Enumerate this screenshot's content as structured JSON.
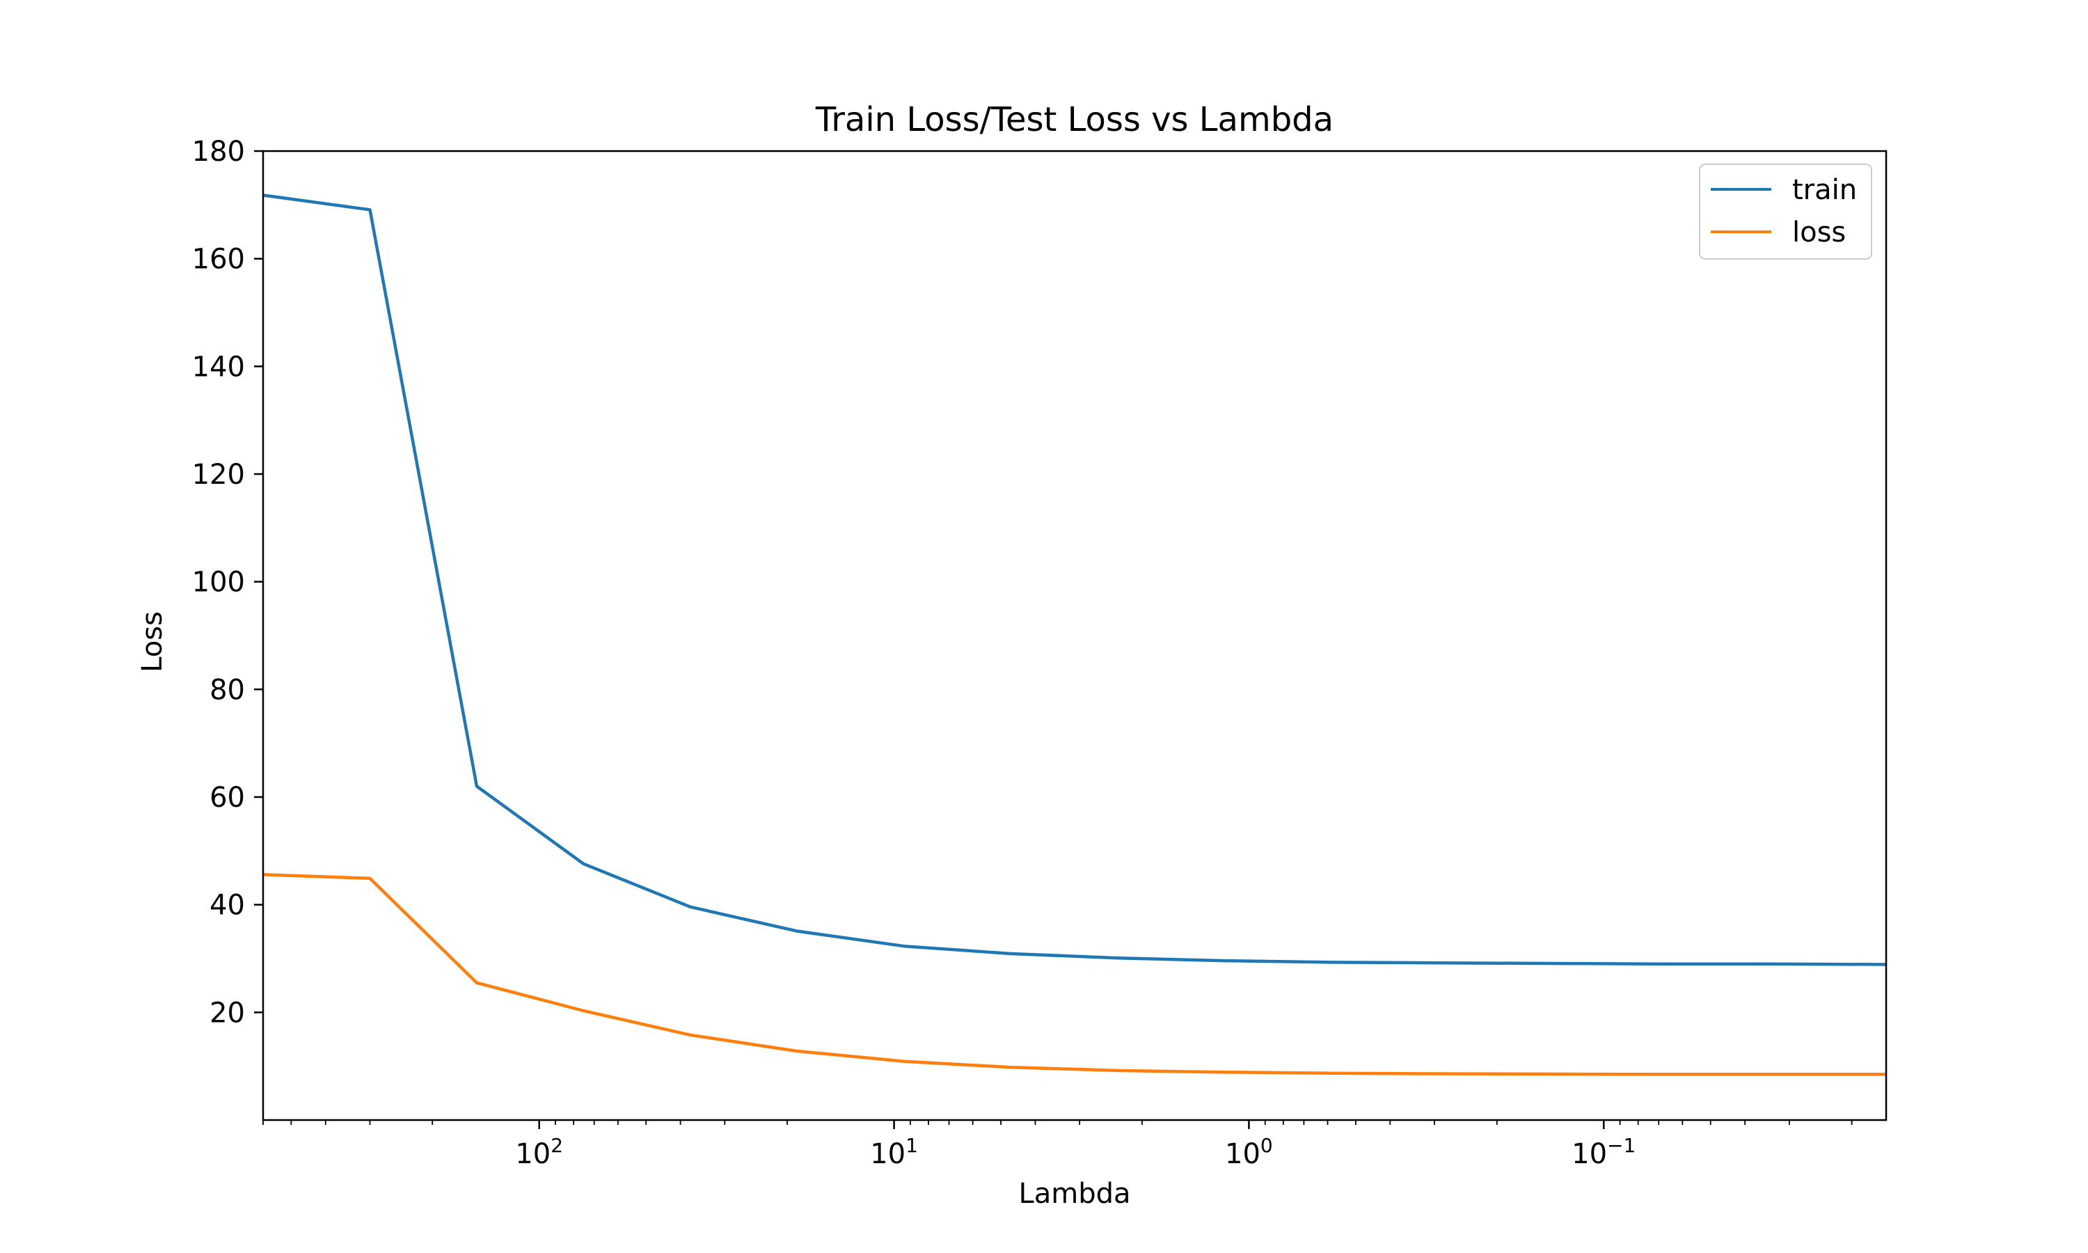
{
  "chart_data": {
    "type": "line",
    "title": "Train Loss/Test Loss vs Lambda",
    "xlabel": "Lambda",
    "ylabel": "Loss",
    "xscale": "log",
    "x_reversed": true,
    "xlim": [
      600,
      0.016
    ],
    "ylim": [
      0,
      180
    ],
    "x_ticks": [
      {
        "value": 100,
        "base": "10",
        "exp": "2"
      },
      {
        "value": 10,
        "base": "10",
        "exp": "1"
      },
      {
        "value": 1,
        "base": "10",
        "exp": "0"
      },
      {
        "value": 0.1,
        "base": "10",
        "exp": "−1"
      }
    ],
    "y_ticks": [
      20,
      40,
      60,
      80,
      100,
      120,
      140,
      160,
      180
    ],
    "grid": false,
    "legend_position": "top-right",
    "x": [
      600,
      300,
      150,
      75,
      37.5,
      18.75,
      9.375,
      4.6875,
      2.34375,
      1.171875,
      0.5859375,
      0.29296875,
      0.146484375,
      0.0732421875,
      0.03662109375,
      0.016
    ],
    "series": [
      {
        "name": "train",
        "color": "#1f77b4",
        "values": [
          171.8,
          169.1,
          62.0,
          47.6,
          39.6,
          35.1,
          32.3,
          30.9,
          30.1,
          29.6,
          29.3,
          29.2,
          29.1,
          29.0,
          29.0,
          28.9
        ]
      },
      {
        "name": "loss",
        "color": "#ff7f0e",
        "values": [
          45.6,
          44.9,
          25.5,
          20.3,
          15.8,
          12.8,
          10.9,
          9.8,
          9.2,
          8.9,
          8.7,
          8.6,
          8.55,
          8.5,
          8.5,
          8.5
        ]
      }
    ]
  }
}
